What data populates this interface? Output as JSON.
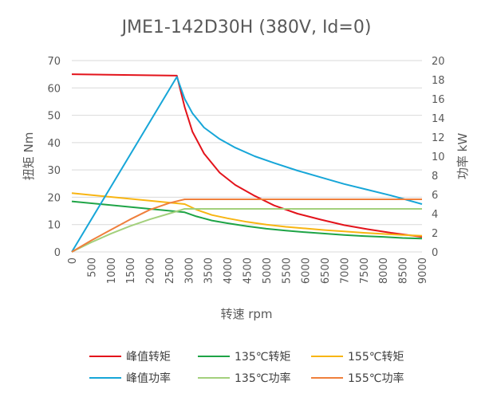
{
  "chart_data": {
    "type": "line",
    "title": "JME1-142D30H (380V, Id=0)",
    "xlabel": "转速 rpm",
    "ylabel": "扭矩 Nm",
    "y2label": "功率 kW",
    "xlim": [
      0,
      9000
    ],
    "ylim": [
      0,
      70
    ],
    "y2lim": [
      0,
      20
    ],
    "x_ticks": [
      "0",
      "500",
      "1000",
      "1500",
      "2000",
      "2500",
      "3000",
      "3500",
      "4000",
      "4500",
      "5000",
      "5500",
      "6000",
      "6500",
      "7000",
      "7500",
      "8000",
      "8500",
      "9000"
    ],
    "y_ticks": [
      "0",
      "10",
      "20",
      "30",
      "40",
      "50",
      "60",
      "70"
    ],
    "y2_ticks": [
      "0",
      "2",
      "4",
      "6",
      "8",
      "10",
      "12",
      "14",
      "16",
      "18",
      "20"
    ],
    "grid": "horizontal",
    "legend_position": "bottom",
    "series": [
      {
        "name": "峰值转矩",
        "axis": "left",
        "color": "#e3131b",
        "x": [
          0,
          2700,
          2900,
          3100,
          3400,
          3800,
          4200,
          4700,
          5200,
          5800,
          6400,
          7000,
          7600,
          8200,
          9000
        ],
        "y": [
          65,
          64.5,
          53,
          44,
          36,
          29,
          24.5,
          20.5,
          17,
          14,
          11.8,
          9.8,
          8.3,
          7,
          5.5
        ]
      },
      {
        "name": "135℃转矩",
        "axis": "left",
        "color": "#1ea446",
        "x": [
          0,
          2900,
          3200,
          3600,
          4000,
          4500,
          5000,
          5500,
          6000,
          6500,
          7000,
          7500,
          8000,
          8500,
          9000
        ],
        "y": [
          18.5,
          14.5,
          13,
          11.5,
          10.5,
          9.4,
          8.5,
          7.8,
          7.2,
          6.7,
          6.2,
          5.8,
          5.5,
          5.1,
          4.9
        ]
      },
      {
        "name": "155℃转矩",
        "axis": "left",
        "color": "#f8b512",
        "x": [
          0,
          2900,
          3200,
          3600,
          4000,
          4500,
          5000,
          5500,
          6000,
          6500,
          7000,
          7500,
          8000,
          8500,
          9000
        ],
        "y": [
          21.5,
          17.5,
          15.5,
          13.5,
          12.3,
          11,
          10,
          9.2,
          8.6,
          8,
          7.5,
          7,
          6.6,
          6.2,
          5.9
        ]
      },
      {
        "name": "峰值功率",
        "axis": "right",
        "color": "#17a6d8",
        "x": [
          0,
          2700,
          2900,
          3100,
          3400,
          3800,
          4200,
          4700,
          5200,
          5800,
          6400,
          7000,
          7600,
          8200,
          9000
        ],
        "y": [
          0,
          18.3,
          16,
          14.5,
          13,
          11.8,
          10.9,
          10,
          9.3,
          8.5,
          7.8,
          7.1,
          6.5,
          5.9,
          5
        ]
      },
      {
        "name": "135℃功率",
        "axis": "right",
        "color": "#a3d07c",
        "x": [
          0,
          500,
          1000,
          1500,
          2000,
          2500,
          2900,
          3500,
          4000,
          5000,
          6000,
          7000,
          8000,
          9000
        ],
        "y": [
          0,
          1.0,
          1.9,
          2.7,
          3.4,
          4.0,
          4.5,
          4.5,
          4.5,
          4.5,
          4.5,
          4.5,
          4.5,
          4.5
        ]
      },
      {
        "name": "155℃功率",
        "axis": "right",
        "color": "#ef7f3c",
        "x": [
          0,
          500,
          1000,
          1500,
          2000,
          2500,
          2900,
          3500,
          4000,
          5000,
          6000,
          7000,
          8000,
          9000
        ],
        "y": [
          0,
          1.2,
          2.3,
          3.4,
          4.4,
          5.1,
          5.5,
          5.5,
          5.5,
          5.5,
          5.5,
          5.5,
          5.5,
          5.5
        ]
      }
    ],
    "legend_order": [
      "峰值转矩",
      "135℃转矩",
      "155℃转矩",
      "峰值功率",
      "135℃功率",
      "155℃功率"
    ]
  }
}
